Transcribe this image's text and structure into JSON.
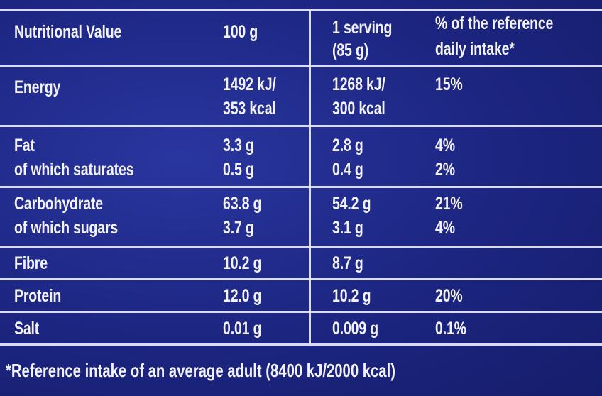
{
  "header": {
    "col1": "Nutritional Value",
    "col2": "100 g",
    "col3_line1": "1 serving",
    "col3_line2": "(85 g)",
    "col4_line1": "% of the reference",
    "col4_line2": "daily intake*"
  },
  "rows": [
    {
      "name": "Energy",
      "per100_l1": "1492 kJ/",
      "per100_l2": "353 kcal",
      "serving_l1": "1268 kJ/",
      "serving_l2": "300 kcal",
      "ri": "15%"
    },
    {
      "name": "Fat",
      "per100": "3.3 g",
      "serving": "2.8 g",
      "ri": "4%"
    },
    {
      "name": "of which saturates",
      "per100": "0.5 g",
      "serving": "0.4 g",
      "ri": "2%"
    },
    {
      "name": "Carbohydrate",
      "per100": "63.8 g",
      "serving": "54.2 g",
      "ri": "21%"
    },
    {
      "name": "of which sugars",
      "per100": "3.7 g",
      "serving": "3.1 g",
      "ri": "4%"
    },
    {
      "name": "Fibre",
      "per100": "10.2 g",
      "serving": "8.7 g",
      "ri": ""
    },
    {
      "name": "Protein",
      "per100": "12.0 g",
      "serving": "10.2 g",
      "ri": "20%"
    },
    {
      "name": "Salt",
      "per100": "0.01 g",
      "serving": "0.009 g",
      "ri": "0.1%"
    }
  ],
  "footnote": "*Reference intake of an average adult (8400 kJ/2000 kcal)"
}
